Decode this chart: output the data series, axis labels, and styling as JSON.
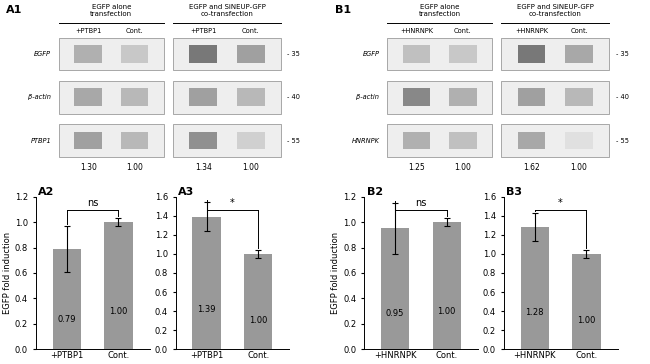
{
  "wb_panels": {
    "A1": {
      "title": "A1",
      "group_labels": [
        "EGFP alone\ntransfection",
        "EGFP and SiNEUP-GFP\nco-transfection"
      ],
      "col_labels": [
        "+PTBP1",
        "Cont.",
        "+PTBP1",
        "Cont."
      ],
      "row_labels": [
        "EGFP",
        "β-actin",
        "PTBP1"
      ],
      "markers": [
        35,
        40,
        55
      ],
      "values": [
        "1.30",
        "1.00",
        "1.34",
        "1.00"
      ],
      "band_colors": [
        [
          "#b0b0b0",
          "#c8c8c8",
          "#787878",
          "#a0a0a0"
        ],
        [
          "#a8a8a8",
          "#b8b8b8",
          "#a0a0a0",
          "#b8b8b8"
        ],
        [
          "#a0a0a0",
          "#b8b8b8",
          "#909090",
          "#d0d0d0"
        ]
      ]
    },
    "B1": {
      "title": "B1",
      "group_labels": [
        "EGFP alone\ntransfection",
        "EGFP and SiNEUP-GFP\nco-transfection"
      ],
      "col_labels": [
        "+HNRNPK",
        "Cont.",
        "+HNRNPK",
        "Cont."
      ],
      "row_labels": [
        "EGFP",
        "β-actin",
        "HNRNPK"
      ],
      "markers": [
        35,
        40,
        55
      ],
      "values": [
        "1.25",
        "1.00",
        "1.62",
        "1.00"
      ],
      "band_colors": [
        [
          "#c0c0c0",
          "#c8c8c8",
          "#787878",
          "#a8a8a8"
        ],
        [
          "#888888",
          "#b0b0b0",
          "#a0a0a0",
          "#b8b8b8"
        ],
        [
          "#b0b0b0",
          "#c0c0c0",
          "#a8a8a8",
          "#e0e0e0"
        ]
      ]
    }
  },
  "bar_panels": {
    "A2": {
      "title": "A2",
      "bars": [
        0.79,
        1.0
      ],
      "errors": [
        0.18,
        0.03
      ],
      "bar_labels": [
        "0.79",
        "1.00"
      ],
      "x_labels": [
        "+PTBP1",
        "Cont."
      ],
      "xlabel": "EGFP alone transfection",
      "ylabel": "EGFP fold induction",
      "ylim": [
        0,
        1.2
      ],
      "yticks": [
        0,
        0.2,
        0.4,
        0.6,
        0.8,
        1.0,
        1.2
      ],
      "significance": "ns",
      "bar_color": "#999999"
    },
    "A3": {
      "title": "A3",
      "bars": [
        1.39,
        1.0
      ],
      "errors": [
        0.15,
        0.04
      ],
      "bar_labels": [
        "1.39",
        "1.00"
      ],
      "x_labels": [
        "+PTBP1",
        "Cont."
      ],
      "xlabel": "EGFP and SiNEUP-GFP\nco-transfection",
      "ylabel": "",
      "ylim": [
        0,
        1.6
      ],
      "yticks": [
        0,
        0.2,
        0.4,
        0.6,
        0.8,
        1.0,
        1.2,
        1.4,
        1.6
      ],
      "significance": "*",
      "bar_color": "#999999"
    },
    "B2": {
      "title": "B2",
      "bars": [
        0.95,
        1.0
      ],
      "errors": [
        0.2,
        0.03
      ],
      "bar_labels": [
        "0.95",
        "1.00"
      ],
      "x_labels": [
        "+HNRNPK",
        "Cont."
      ],
      "xlabel": "EGFP alone transfection",
      "ylabel": "EGFP fold induction",
      "ylim": [
        0,
        1.2
      ],
      "yticks": [
        0,
        0.2,
        0.4,
        0.6,
        0.8,
        1.0,
        1.2
      ],
      "significance": "ns",
      "bar_color": "#999999"
    },
    "B3": {
      "title": "B3",
      "bars": [
        1.28,
        1.0
      ],
      "errors": [
        0.15,
        0.04
      ],
      "bar_labels": [
        "1.28",
        "1.00"
      ],
      "x_labels": [
        "+HNRNPK",
        "Cont."
      ],
      "xlabel": "EGFP and SiNEUP-GFP\nco-transfection",
      "ylabel": "",
      "ylim": [
        0,
        1.6
      ],
      "yticks": [
        0,
        0.2,
        0.4,
        0.6,
        0.8,
        1.0,
        1.2,
        1.4,
        1.6
      ],
      "significance": "*",
      "bar_color": "#999999"
    }
  },
  "bg_color": "#ffffff"
}
